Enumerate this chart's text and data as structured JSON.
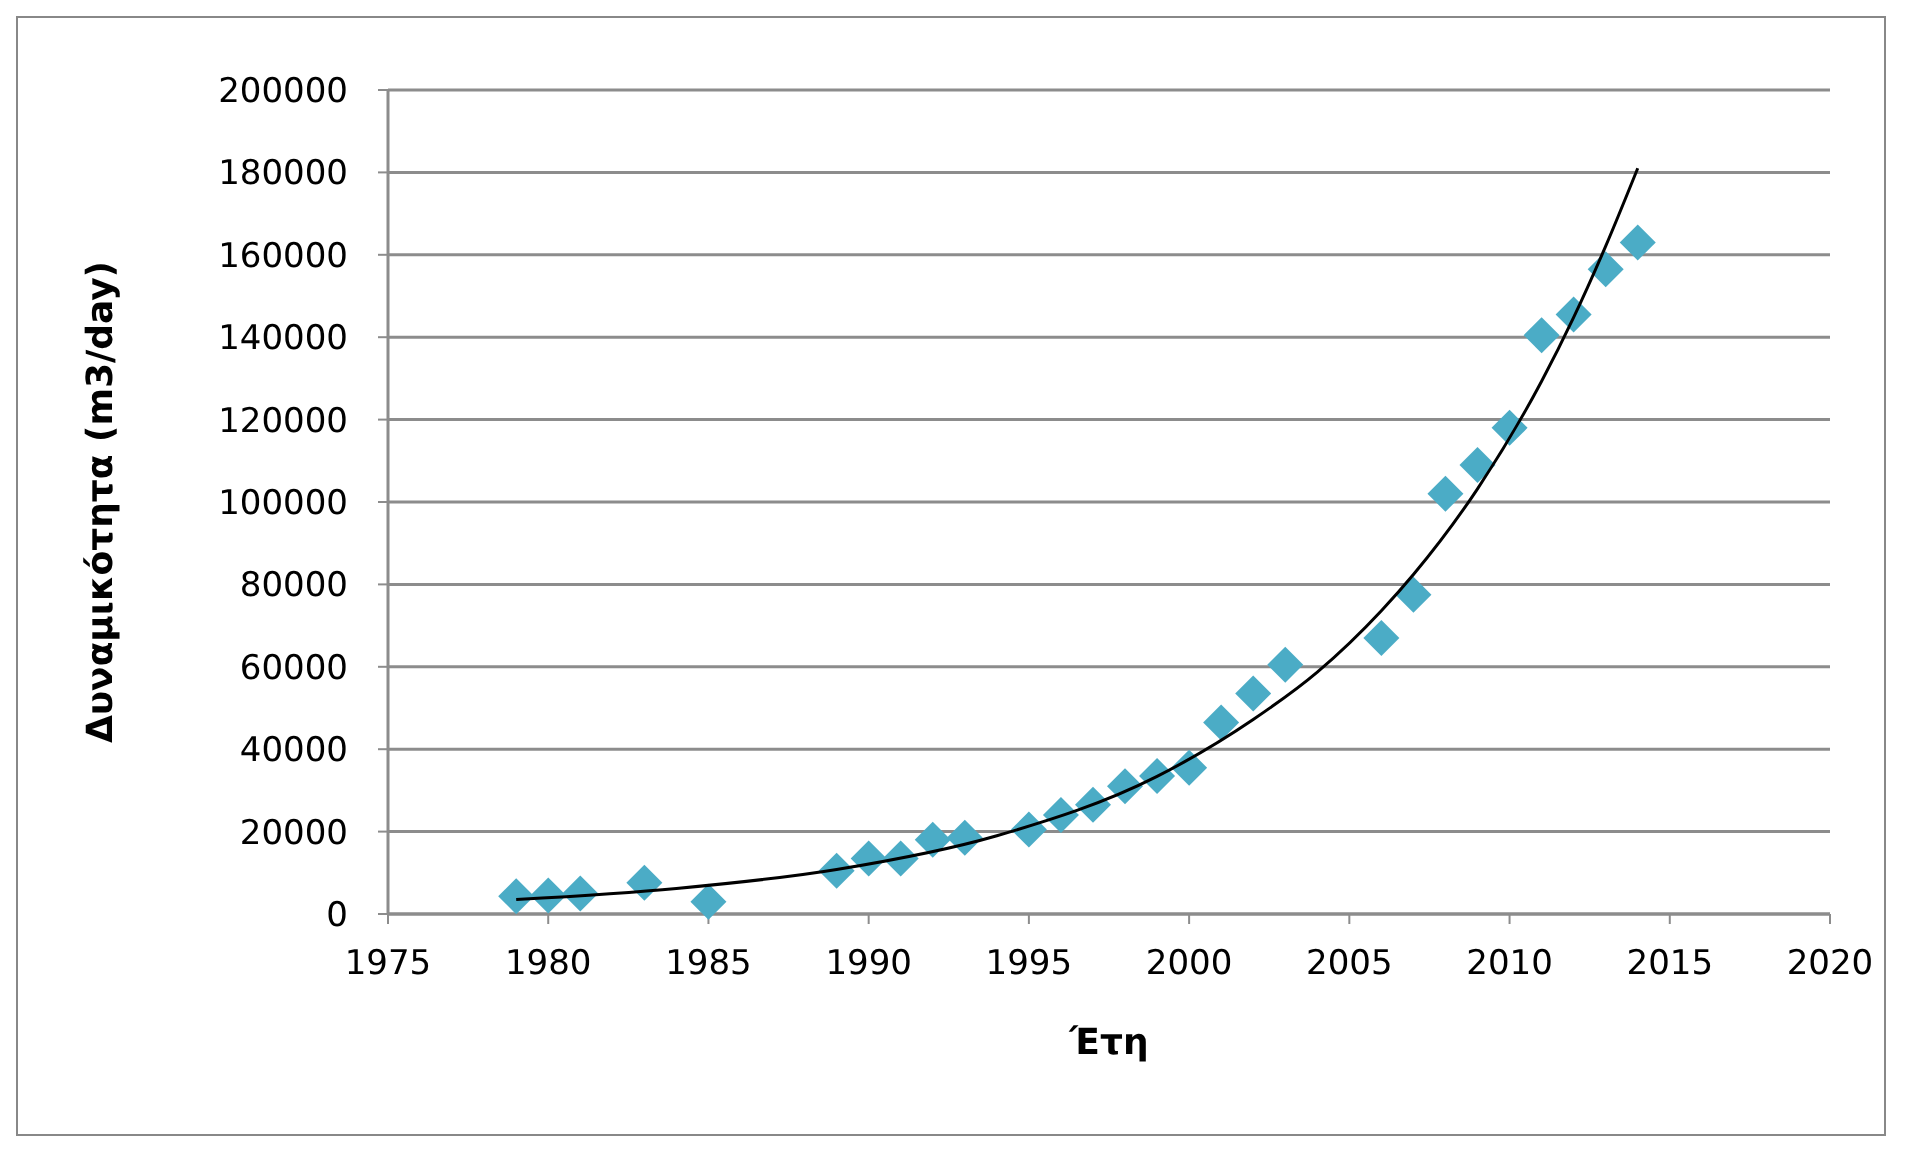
{
  "chart_data": {
    "type": "scatter",
    "xlabel": "Έτη",
    "ylabel": "Δυναμικότητα (m3/day)",
    "xlim": [
      1975,
      2020
    ],
    "xticks": [
      1975,
      1980,
      1985,
      1990,
      1995,
      2000,
      2005,
      2010,
      2015,
      2020
    ],
    "ylim": [
      0,
      200000
    ],
    "yticks": [
      0,
      20000,
      40000,
      60000,
      80000,
      100000,
      120000,
      140000,
      160000,
      180000,
      200000
    ],
    "grid": "y",
    "series": [
      {
        "color": "#4bacc6",
        "marker": "diamond",
        "x": [
          1979,
          1980,
          1981,
          1983,
          1985,
          1989,
          1990,
          1991,
          1992,
          1993,
          1995,
          1996,
          1997,
          1998,
          1999,
          2000,
          2001,
          2002,
          2003,
          2006,
          2007,
          2008,
          2009,
          2010,
          2011,
          2012,
          2013,
          2014
        ],
        "values": [
          4300,
          4500,
          5000,
          7600,
          3000,
          10500,
          13500,
          13500,
          18000,
          18500,
          20500,
          24000,
          26500,
          31000,
          33500,
          35500,
          46500,
          53500,
          60500,
          67000,
          77500,
          102000,
          109000,
          118000,
          140500,
          145500,
          156500,
          163000
        ]
      },
      {
        "type": "line",
        "color": "#000000",
        "marker": "none",
        "line_style": "solid",
        "x": [
          1979,
          1984,
          1989,
          1994,
          1999,
          2002,
          2004,
          2006,
          2007,
          2009,
          2011,
          2012,
          2013,
          2014
        ],
        "values": [
          3500,
          6200,
          10800,
          19000,
          33400,
          47200,
          58700,
          73600,
          82400,
          103200,
          129300,
          144800,
          162100,
          181000
        ]
      }
    ]
  }
}
